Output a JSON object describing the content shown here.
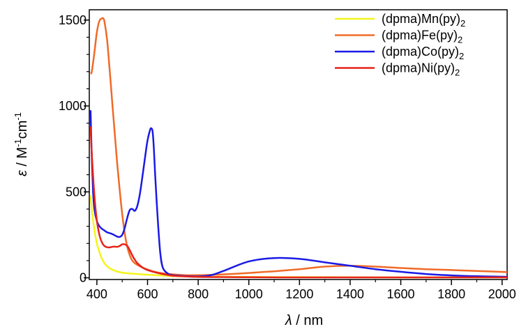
{
  "chart_data": {
    "type": "line",
    "xlabel": {
      "symbol": "λ",
      "unit": " / nm"
    },
    "ylabel": {
      "symbol": "ε",
      "unit": " / M",
      "sup1": "-1",
      "mid": "cm",
      "sup2": "-1"
    },
    "xlim": [
      370,
      2020
    ],
    "ylim": [
      -10,
      1560
    ],
    "xticks": [
      400,
      600,
      800,
      1000,
      1200,
      1400,
      1600,
      1800,
      2000
    ],
    "yticks": [
      0,
      500,
      1000,
      1500
    ],
    "grid": false,
    "legend_position": "top-right",
    "series": [
      {
        "name": "(dpma)Mn(py)",
        "sub": "2",
        "color": "#f5f51a",
        "x": [
          375,
          380,
          390,
          400,
          410,
          420,
          430,
          440,
          450,
          460,
          480,
          500,
          530,
          560,
          600,
          650,
          700,
          750,
          800,
          900,
          1000,
          1200,
          1400,
          1600,
          1800,
          2020
        ],
        "y": [
          480,
          400,
          280,
          200,
          150,
          110,
          85,
          68,
          56,
          48,
          37,
          30,
          25,
          22,
          18,
          14,
          10,
          8,
          7,
          6,
          5,
          4,
          3,
          2,
          2,
          2
        ]
      },
      {
        "name": "(dpma)Fe(py)",
        "sub": "2",
        "color": "#f06a28",
        "x": [
          375,
          380,
          390,
          400,
          410,
          420,
          425,
          430,
          440,
          450,
          460,
          470,
          480,
          490,
          500,
          510,
          520,
          530,
          540,
          550,
          560,
          580,
          600,
          620,
          650,
          700,
          750,
          800,
          850,
          900,
          1000,
          1100,
          1200,
          1300,
          1400,
          1500,
          1600,
          1700,
          1800,
          1900,
          2020
        ],
        "y": [
          1190,
          1200,
          1310,
          1430,
          1495,
          1510,
          1510,
          1490,
          1390,
          1220,
          1030,
          850,
          670,
          510,
          370,
          260,
          180,
          130,
          100,
          85,
          75,
          60,
          48,
          38,
          28,
          20,
          15,
          15,
          17,
          20,
          28,
          38,
          50,
          65,
          70,
          65,
          57,
          50,
          45,
          40,
          33
        ]
      },
      {
        "name": "(dpma)Co(py)",
        "sub": "2",
        "color": "#1a1ae6",
        "x": [
          375,
          380,
          385,
          390,
          400,
          410,
          420,
          430,
          440,
          460,
          480,
          490,
          500,
          510,
          520,
          530,
          540,
          550,
          560,
          570,
          580,
          590,
          600,
          610,
          615,
          620,
          625,
          630,
          640,
          650,
          660,
          680,
          700,
          750,
          800,
          850,
          900,
          1000,
          1100,
          1200,
          1300,
          1400,
          1500,
          1600,
          1700,
          1800,
          1900,
          2020
        ],
        "y": [
          975,
          700,
          500,
          400,
          330,
          300,
          285,
          275,
          265,
          255,
          240,
          238,
          250,
          290,
          350,
          395,
          400,
          390,
          420,
          490,
          590,
          700,
          800,
          860,
          870,
          850,
          750,
          600,
          350,
          150,
          60,
          25,
          15,
          10,
          8,
          15,
          40,
          95,
          115,
          110,
          90,
          70,
          50,
          35,
          22,
          14,
          9,
          6
        ]
      },
      {
        "name": "(dpma)Ni(py)",
        "sub": "2",
        "color": "#e6231a",
        "x": [
          375,
          380,
          390,
          400,
          410,
          420,
          430,
          440,
          450,
          460,
          470,
          480,
          490,
          500,
          510,
          520,
          530,
          540,
          550,
          560,
          580,
          600,
          650,
          700,
          750,
          800,
          900,
          1000,
          1200,
          1400,
          1600,
          1800,
          2020
        ],
        "y": [
          880,
          720,
          480,
          330,
          250,
          205,
          185,
          178,
          177,
          180,
          182,
          180,
          185,
          195,
          195,
          185,
          160,
          130,
          105,
          85,
          60,
          45,
          25,
          12,
          8,
          5,
          4,
          3,
          2,
          2,
          2,
          2,
          2
        ]
      }
    ]
  }
}
